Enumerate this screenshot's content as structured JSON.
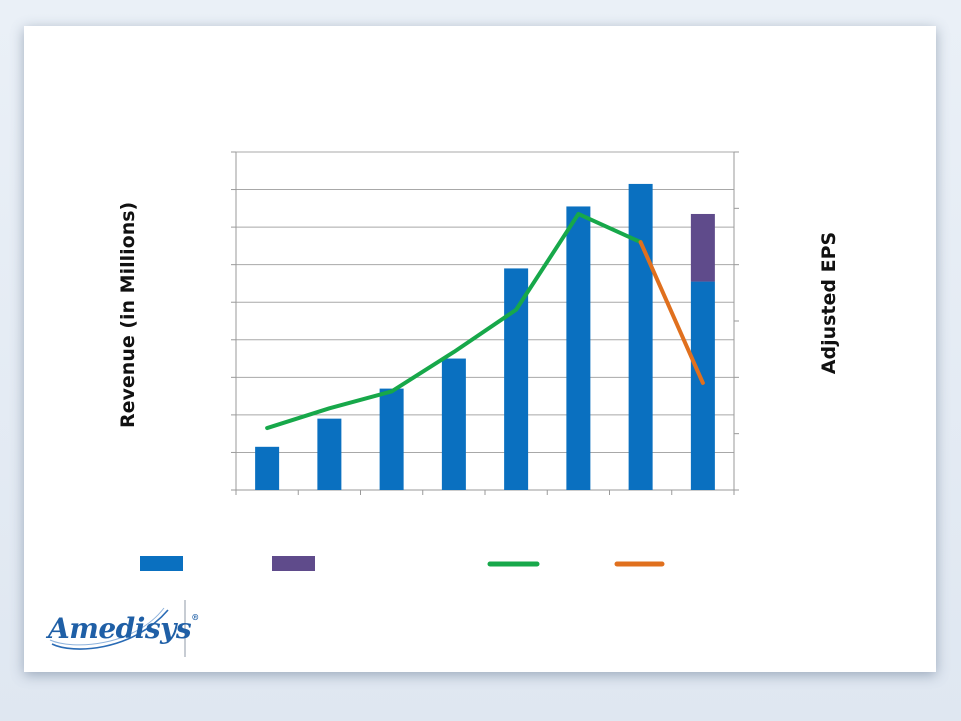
{
  "chart_data": {
    "type": "bar",
    "title": "",
    "categories": [
      "",
      "",
      "",
      "",
      "",
      "",
      "",
      ""
    ],
    "y_left_label": "Revenue (in Millions)",
    "y_right_label": "Adjusted EPS",
    "y_left_range": [
      0,
      9
    ],
    "y_left_gridlines": 9,
    "y_right_range": [
      0,
      6
    ],
    "y_right_ticks": 6,
    "grid": true,
    "legend_position": "bottom",
    "series": [
      {
        "name": "",
        "kind": "bar",
        "color": "#0a70c0",
        "values": [
          1.15,
          1.9,
          2.7,
          3.5,
          5.9,
          7.55,
          8.15,
          5.55
        ]
      },
      {
        "name": "",
        "kind": "bar-stacked",
        "color": "#5f4b8b",
        "values": [
          0,
          0,
          0,
          0,
          0,
          0,
          0,
          1.8
        ]
      },
      {
        "name": "",
        "kind": "line",
        "axis": "right",
        "color": "#17a84a",
        "values": [
          1.1,
          1.45,
          1.75,
          2.45,
          3.2,
          4.9,
          4.4,
          null
        ]
      },
      {
        "name": "",
        "kind": "line",
        "axis": "right",
        "color": "#e0701e",
        "values": [
          null,
          null,
          null,
          null,
          null,
          null,
          4.4,
          1.9
        ]
      }
    ]
  },
  "logo": {
    "name": "Amedisys",
    "reg": "®"
  }
}
